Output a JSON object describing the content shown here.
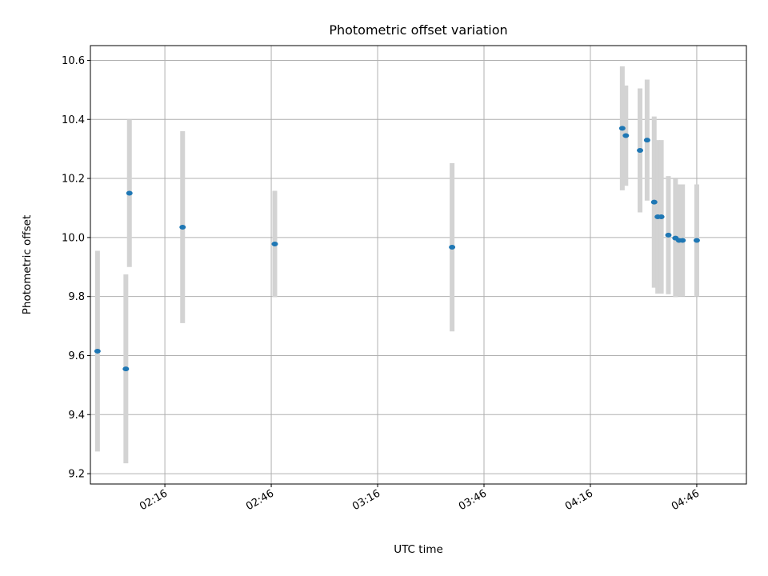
{
  "chart_data": {
    "type": "scatter",
    "title": "Photometric offset variation",
    "xlabel": "UTC time",
    "ylabel": "Photometric offset",
    "ylim": [
      9.165,
      10.65
    ],
    "xlim_minutes": [
      115,
      300
    ],
    "grid": true,
    "yticks": [
      9.2,
      9.4,
      9.6,
      9.8,
      10.0,
      10.2,
      10.4,
      10.6
    ],
    "ytick_labels": [
      "9.2",
      "9.4",
      "9.6",
      "9.8",
      "10.0",
      "10.2",
      "10.4",
      "10.6"
    ],
    "xticks": [
      "02:16",
      "02:46",
      "03:16",
      "03:46",
      "04:16",
      "04:46"
    ],
    "xtick_minutes": [
      136,
      166,
      196,
      226,
      256,
      286
    ],
    "colors": {
      "marker": "#1f77b4",
      "errorbar": "#d3d3d3",
      "grid": "#b0b0b0"
    },
    "points": [
      {
        "time": "01:57",
        "y": 9.615,
        "err": 0.34
      },
      {
        "time": "02:05",
        "y": 9.555,
        "err": 0.32
      },
      {
        "time": "02:06",
        "y": 10.15,
        "err": 0.25
      },
      {
        "time": "02:21",
        "y": 10.035,
        "err": 0.325
      },
      {
        "time": "02:47",
        "y": 9.978,
        "err": 0.18
      },
      {
        "time": "03:37",
        "y": 9.967,
        "err": 0.285
      },
      {
        "time": "04:25",
        "y": 10.37,
        "err": 0.21
      },
      {
        "time": "04:26",
        "y": 10.345,
        "err": 0.17
      },
      {
        "time": "04:30",
        "y": 10.295,
        "err": 0.21
      },
      {
        "time": "04:32",
        "y": 10.33,
        "err": 0.205
      },
      {
        "time": "04:34",
        "y": 10.12,
        "err": 0.29
      },
      {
        "time": "04:35",
        "y": 10.07,
        "err": 0.26
      },
      {
        "time": "04:36",
        "y": 10.07,
        "err": 0.26
      },
      {
        "time": "04:38",
        "y": 10.008,
        "err": 0.2
      },
      {
        "time": "04:40",
        "y": 9.998,
        "err": 0.2
      },
      {
        "time": "04:41",
        "y": 9.99,
        "err": 0.19
      },
      {
        "time": "04:42",
        "y": 9.99,
        "err": 0.19
      },
      {
        "time": "04:46",
        "y": 9.99,
        "err": 0.19
      }
    ]
  }
}
